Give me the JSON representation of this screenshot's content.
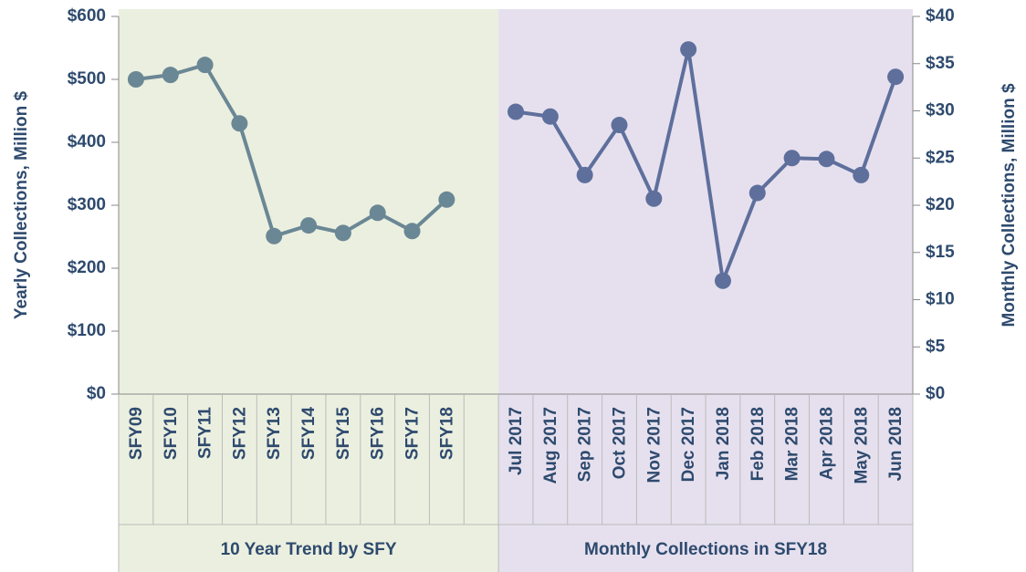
{
  "chart_data": {
    "type": "line",
    "ylabel": "Yearly Collections, Million $",
    "y2label": "Monthly Collections, Million $",
    "categories": [
      "SFY09",
      "SFY10",
      "SFY11",
      "SFY12",
      "SFY13",
      "SFY14",
      "SFY15",
      "SFY16",
      "SFY17",
      "SFY18",
      null,
      "Jul 2017",
      "Aug 2017",
      "Sep 2017",
      "Oct 2017",
      "Nov 2017",
      "Dec 2017",
      "Jan 2018",
      "Feb 2018",
      "Mar 2018",
      "Apr 2018",
      "May 2018",
      "Jun 2018"
    ],
    "groups": [
      "10 Year Trend by SFY",
      "Monthly Collections in SFY18"
    ],
    "group_colors": [
      "#ebefdf",
      "#e6e0ee"
    ],
    "series": [
      {
        "color": "#6a8795",
        "values": [
          500,
          507,
          523,
          430,
          251,
          268,
          256,
          288,
          259,
          309,
          null,
          null,
          null,
          null,
          null,
          null,
          null,
          null,
          null,
          null,
          null,
          null,
          null
        ]
      },
      {
        "color": "#5e6f9c",
        "axis": "y2",
        "values": [
          null,
          null,
          null,
          null,
          null,
          null,
          null,
          null,
          null,
          null,
          null,
          29.9,
          29.4,
          23.2,
          28.5,
          20.7,
          36.5,
          12.0,
          21.3,
          25.0,
          24.9,
          23.2,
          33.6
        ]
      }
    ],
    "ylim": [
      0,
      600
    ],
    "yticks": [
      {
        "value": 0,
        "label": "$0"
      },
      {
        "value": 100,
        "label": "$100"
      },
      {
        "value": 200,
        "label": "$200"
      },
      {
        "value": 300,
        "label": "$300"
      },
      {
        "value": 400,
        "label": "$400"
      },
      {
        "value": 500,
        "label": "$500"
      },
      {
        "value": 600,
        "label": "$600"
      }
    ],
    "y2lim": [
      0,
      40
    ],
    "y2ticks": [
      {
        "value": 0,
        "label": "$0"
      },
      {
        "value": 5,
        "label": "$5"
      },
      {
        "value": 10,
        "label": "$10"
      },
      {
        "value": 15,
        "label": "$15"
      },
      {
        "value": 20,
        "label": "$20"
      },
      {
        "value": 25,
        "label": "$25"
      },
      {
        "value": 30,
        "label": "$30"
      },
      {
        "value": 35,
        "label": "$35"
      },
      {
        "value": 40,
        "label": "$40"
      }
    ]
  }
}
